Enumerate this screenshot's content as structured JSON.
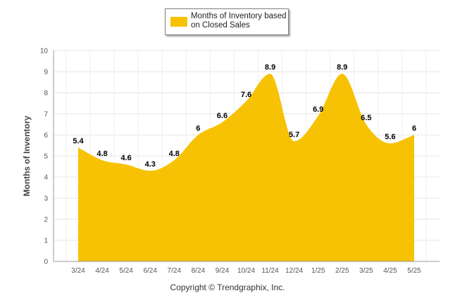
{
  "legend": {
    "label": "Months of Inventory based on Closed Sales"
  },
  "copyright": "Copyright © Trendgraphix, Inc.",
  "colors": {
    "area": "#f7c203",
    "grid": "#e6e6e6",
    "axis": "#999999"
  },
  "chart_data": {
    "type": "area",
    "categories": [
      "3/24",
      "4/24",
      "5/24",
      "6/24",
      "7/24",
      "8/24",
      "9/24",
      "10/24",
      "11/24",
      "12/24",
      "1/25",
      "2/25",
      "3/25",
      "4/25",
      "5/25"
    ],
    "series": [
      {
        "name": "Months of Inventory based on Closed Sales",
        "values": [
          5.4,
          4.8,
          4.6,
          4.3,
          4.8,
          6,
          6.6,
          7.6,
          8.9,
          5.7,
          6.9,
          8.9,
          6.5,
          5.6,
          6
        ]
      }
    ],
    "data_labels": [
      "5.4",
      "4.8",
      "4.6",
      "4.3",
      "4.8",
      "6",
      "6.6",
      "7.6",
      "8.9",
      "5.7",
      "6.9",
      "8.9",
      "6.5",
      "5.6",
      "6"
    ],
    "ylabel": "Months of Inventory",
    "xlabel": "",
    "ylim": [
      0,
      10
    ],
    "yticks": [
      "0",
      "1",
      "2",
      "3",
      "4",
      "5",
      "6",
      "7",
      "8",
      "9",
      "10"
    ],
    "grid": true,
    "legend_position": "top-center"
  }
}
